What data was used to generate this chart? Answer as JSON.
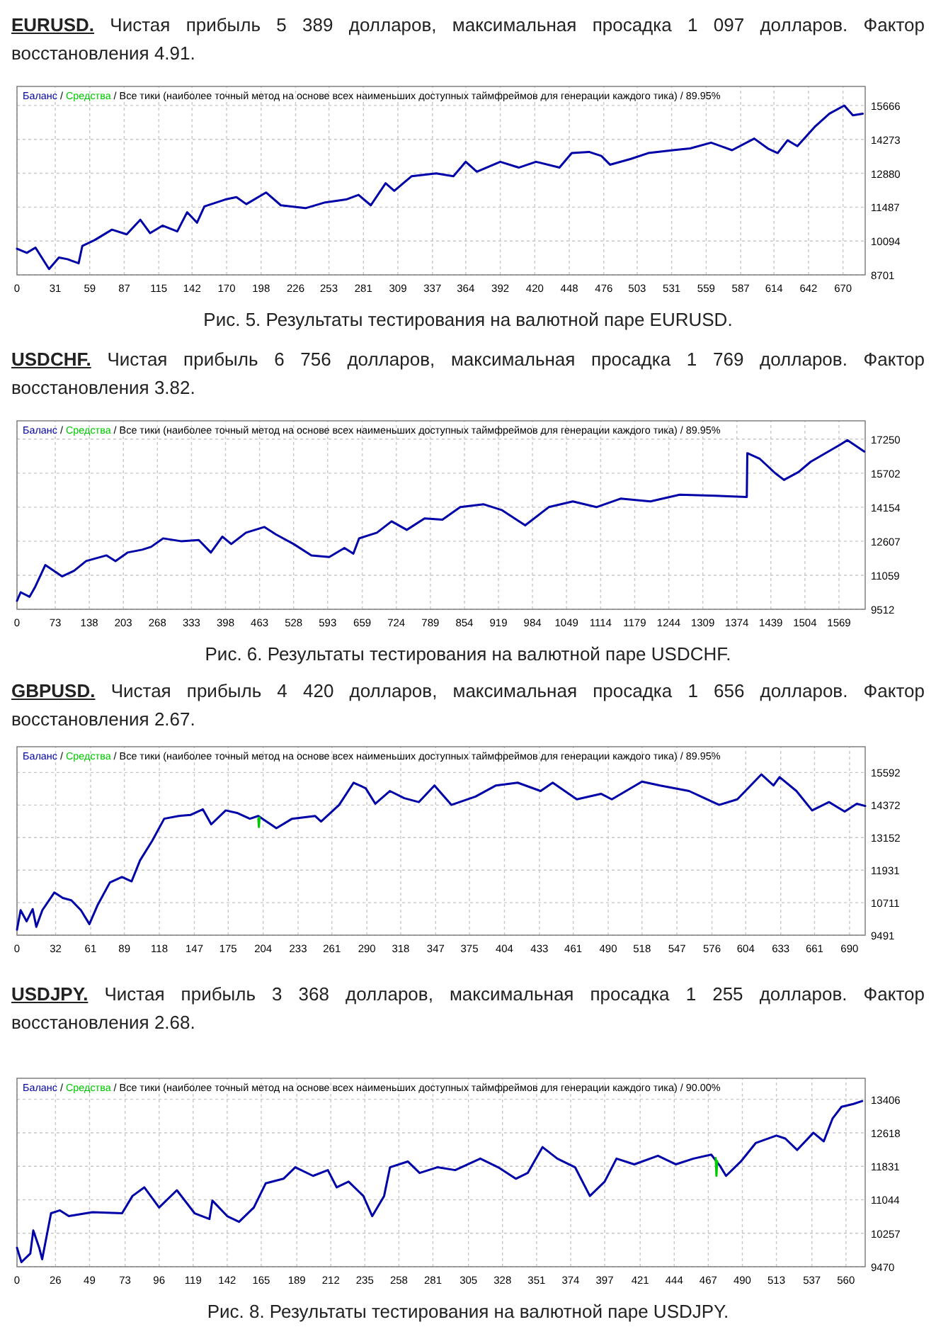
{
  "chart_data": [
    {
      "type": "line",
      "title": "EURUSD.",
      "subtitle": "Чистая прибыль 5 389 долларов, максимальная просадка 1 097 долларов. Фактор восстановления 4.91.",
      "annotations": [
        "/",
        "/ Все тики (наиболее точный метод на основе всех наименьших доступных таймфреймов для генерации каждого тика) / 89.95%",
        "Рис. 5. Результаты тестирования на валютной паре EURUSD."
      ],
      "xlim": [
        0,
        688
      ],
      "ylim": [
        8701,
        16450
      ],
      "xticks": [
        0,
        31,
        59,
        87,
        115,
        142,
        170,
        198,
        226,
        253,
        281,
        309,
        337,
        364,
        392,
        420,
        448,
        476,
        503,
        531,
        559,
        587,
        614,
        642,
        670
      ],
      "yticks": [
        8701,
        10094,
        11487,
        12880,
        14273,
        15666
      ],
      "grid": true,
      "legend": "top left",
      "line_style": "solid",
      "series": [
        {
          "name": "Баланс",
          "color": "#0000a8",
          "x": [
            0,
            8,
            15,
            26,
            34,
            41,
            50,
            53,
            63,
            77,
            89,
            100,
            108,
            118,
            130,
            138,
            146,
            152,
            169,
            178,
            186,
            202,
            214,
            234,
            250,
            267,
            277,
            287,
            299,
            306,
            320,
            340,
            354,
            364,
            373,
            392,
            407,
            421,
            440,
            450,
            464,
            474,
            481,
            498,
            512,
            532,
            546,
            563,
            580,
            598,
            609,
            617,
            625,
            633,
            647,
            659,
            671,
            678,
            686
          ],
          "values": [
            9774,
            9607,
            9822,
            8940,
            9416,
            9345,
            9178,
            9894,
            10132,
            10561,
            10370,
            10967,
            10418,
            10728,
            10490,
            11277,
            10848,
            11515,
            11802,
            11897,
            11611,
            12088,
            11563,
            11444,
            11682,
            11802,
            11992,
            11563,
            12469,
            12159,
            12755,
            12875,
            12755,
            13352,
            12946,
            13352,
            13113,
            13352,
            13113,
            13710,
            13757,
            13590,
            13233,
            13471,
            13710,
            13829,
            13900,
            14139,
            13829,
            14306,
            13900,
            13710,
            14234,
            13996,
            14783,
            15331,
            15665,
            15260,
            15331
          ]
        },
        {
          "name": "Средства",
          "color": "#00c800"
        }
      ]
    },
    {
      "type": "line",
      "title": "USDCHF.",
      "subtitle": "Чистая прибыль 6 756 долларов, максимальная просадка 1 769 долларов. Фактор восстановления 3.82.",
      "annotations": [
        "/",
        "/ Все тики (наиболее точный метод на основе всех наименьших доступных таймфреймов для генерации каждого тика) / 89.95%",
        "Рис. 6. Результаты тестирования на валютной паре USDCHF."
      ],
      "xlim": [
        0,
        1619
      ],
      "ylim": [
        9512,
        18080
      ],
      "xticks": [
        0,
        73,
        138,
        203,
        268,
        333,
        398,
        463,
        528,
        593,
        659,
        724,
        789,
        854,
        919,
        984,
        1049,
        1114,
        1179,
        1244,
        1309,
        1374,
        1439,
        1504,
        1569
      ],
      "yticks": [
        9512,
        11059,
        12607,
        14154,
        15702,
        17250
      ],
      "grid": true,
      "legend": "top left",
      "line_style": "solid",
      "series": [
        {
          "name": "Баланс",
          "color": "#0000a8",
          "x": [
            0,
            7,
            24,
            35,
            54,
            86,
            109,
            132,
            171,
            188,
            211,
            239,
            256,
            279,
            313,
            347,
            370,
            392,
            409,
            437,
            472,
            494,
            528,
            562,
            596,
            625,
            642,
            653,
            687,
            715,
            744,
            778,
            812,
            846,
            891,
            925,
            970,
            1015,
            1061,
            1106,
            1152,
            1209,
            1265,
            1333,
            1393,
            1394,
            1418,
            1447,
            1464,
            1492,
            1515,
            1543,
            1571,
            1585,
            1617
          ],
          "values": [
            9899,
            10286,
            10080,
            10544,
            11524,
            11008,
            11266,
            11705,
            11963,
            11705,
            12092,
            12221,
            12350,
            12737,
            12608,
            12660,
            12092,
            12814,
            12479,
            12995,
            13253,
            12918,
            12479,
            11963,
            11885,
            12298,
            12040,
            12737,
            12995,
            13511,
            13124,
            13640,
            13588,
            14156,
            14285,
            14027,
            13330,
            14156,
            14414,
            14156,
            14543,
            14414,
            14723,
            14672,
            14620,
            16607,
            16349,
            15704,
            15394,
            15756,
            16220,
            16607,
            16994,
            17200,
            16684
          ]
        },
        {
          "name": "Средства",
          "color": "#00c800"
        }
      ]
    },
    {
      "type": "line",
      "title": "GBPUSD.",
      "subtitle": "Чистая прибыль 4 420 долларов, максимальная просадка 1 656 долларов. Фактор восстановления 2.67.",
      "annotations": [
        "/",
        "/ Все тики (наиболее точный метод на основе всех наименьших доступных таймфреймов для генерации каждого тика) / 89.95%"
      ],
      "xlim": [
        0,
        703
      ],
      "ylim": [
        9491,
        16560
      ],
      "xticks": [
        0,
        32,
        61,
        89,
        118,
        147,
        175,
        204,
        233,
        261,
        290,
        318,
        347,
        375,
        404,
        433,
        461,
        490,
        518,
        547,
        576,
        604,
        633,
        661,
        690
      ],
      "yticks": [
        9491,
        10711,
        11931,
        13152,
        14372,
        15592
      ],
      "grid": true,
      "legend": "top left",
      "line_style": "solid",
      "series": [
        {
          "name": "Баланс",
          "color": "#0000a8",
          "x": [
            0,
            3,
            8,
            13,
            16,
            21,
            31,
            38,
            45,
            53,
            60,
            67,
            77,
            87,
            95,
            102,
            112,
            122,
            134,
            144,
            154,
            161,
            173,
            183,
            193,
            200,
            215,
            228,
            247,
            252,
            267,
            279,
            289,
            297,
            309,
            321,
            333,
            346,
            360,
            380,
            397,
            415,
            434,
            444,
            464,
            484,
            493,
            518,
            533,
            557,
            567,
            582,
            597,
            617,
            627,
            632,
            646,
            659,
            673,
            686,
            696,
            703
          ],
          "values": [
            9699,
            10427,
            10011,
            10469,
            9803,
            10427,
            11093,
            10885,
            10801,
            10427,
            9907,
            10635,
            11467,
            11675,
            11509,
            12299,
            13027,
            13859,
            13963,
            14005,
            14213,
            13651,
            14171,
            14067,
            13859,
            13963,
            13505,
            13859,
            13963,
            13755,
            14379,
            15211,
            15003,
            14421,
            14899,
            14629,
            14483,
            15107,
            14379,
            14691,
            15107,
            15211,
            14899,
            15211,
            14587,
            14795,
            14587,
            15253,
            15107,
            14899,
            14691,
            14379,
            14587,
            15523,
            15107,
            15419,
            14899,
            14171,
            14483,
            14130,
            14421,
            14337
          ]
        },
        {
          "name": "Средства",
          "color": "#00c800",
          "x": [
            200,
            200.5,
            201
          ],
          "values": [
            13859,
            13547,
            13900
          ]
        }
      ]
    },
    {
      "type": "line",
      "title": "USDJPY.",
      "subtitle": "Чистая прибыль 3 368 долларов, максимальная просадка 1 255 долларов. Фактор восстановления 2.68.",
      "annotations": [
        "/",
        "/ Все тики (наиболее точный метод на основе всех наименьших доступных таймфреймов для генерации каждого тика) / 90.00%",
        "Рис. 8. Результаты тестирования на валютной паре USDJPY."
      ],
      "xlim": [
        0,
        573
      ],
      "ylim": [
        9470,
        13900
      ],
      "xticks": [
        0,
        26,
        49,
        73,
        96,
        119,
        142,
        165,
        189,
        212,
        235,
        258,
        281,
        305,
        328,
        351,
        374,
        397,
        421,
        444,
        467,
        490,
        513,
        537,
        560
      ],
      "yticks": [
        9470,
        10257,
        11044,
        11831,
        12618,
        13406
      ],
      "grid": true,
      "legend": "top left",
      "line_style": "solid",
      "series": [
        {
          "name": "Баланс",
          "color": "#0000a8",
          "x": [
            0,
            3,
            9,
            11,
            15,
            17,
            23,
            29,
            35,
            51,
            71,
            78,
            86,
            96,
            108,
            120,
            130,
            132,
            142,
            150,
            160,
            168,
            180,
            188,
            200,
            210,
            216,
            224,
            234,
            240,
            248,
            252,
            264,
            272,
            284,
            296,
            313,
            325,
            337,
            345,
            355,
            365,
            377,
            387,
            397,
            405,
            417,
            433,
            445,
            457,
            469,
            475,
            479,
            489,
            499,
            513,
            519,
            527,
            538,
            545,
            551,
            557,
            565,
            571
          ],
          "values": [
            9916,
            9578,
            9781,
            10322,
            9916,
            9646,
            10727,
            10795,
            10660,
            10754,
            10727,
            11133,
            11336,
            10862,
            11268,
            10727,
            10592,
            11025,
            10660,
            10525,
            10862,
            11430,
            11538,
            11809,
            11606,
            11741,
            11336,
            11471,
            11133,
            10660,
            11133,
            11809,
            11944,
            11674,
            11809,
            11741,
            12012,
            11809,
            11538,
            11674,
            12282,
            12012,
            11809,
            11133,
            11471,
            12012,
            11877,
            12079,
            11877,
            12012,
            12106,
            11836,
            11606,
            11944,
            12377,
            12553,
            12485,
            12215,
            12620,
            12418,
            12958,
            13229,
            13296,
            13364
          ]
        },
        {
          "name": "Средства",
          "color": "#00c800",
          "x": [
            472,
            472.5,
            473
          ],
          "values": [
            12025,
            11606,
            11950
          ]
        }
      ]
    }
  ]
}
